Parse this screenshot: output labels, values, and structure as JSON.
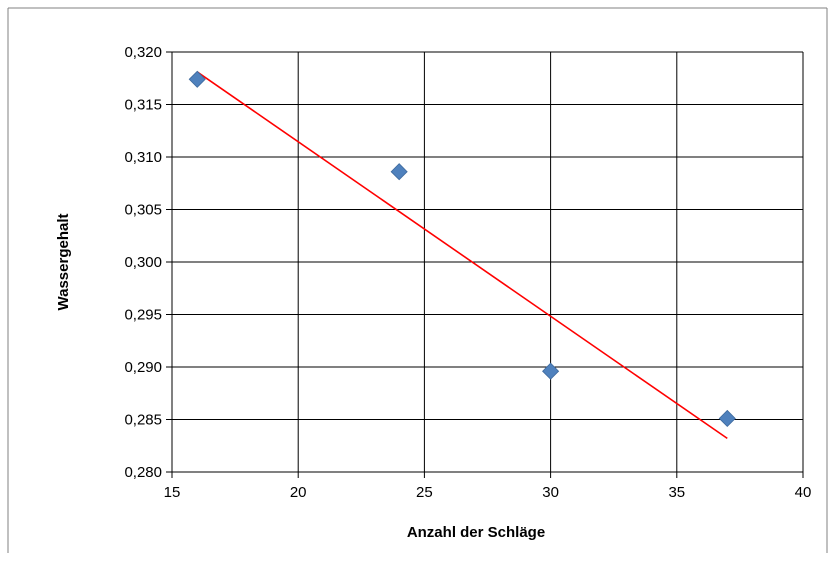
{
  "chart_data": {
    "type": "scatter",
    "title": "",
    "xlabel": "Anzahl der Schläge",
    "ylabel": "Wassergehalt",
    "xlim": [
      15,
      40
    ],
    "ylim": [
      0.28,
      0.32
    ],
    "x_ticks": [
      15,
      20,
      25,
      30,
      35,
      40
    ],
    "x_tick_labels": [
      "15",
      "20",
      "25",
      "30",
      "35",
      "40"
    ],
    "y_ticks": [
      0.28,
      0.285,
      0.29,
      0.295,
      0.3,
      0.305,
      0.31,
      0.315,
      0.32
    ],
    "y_tick_labels": [
      "0,280",
      "0,285",
      "0,290",
      "0,295",
      "0,300",
      "0,305",
      "0,310",
      "0,315",
      "0,320"
    ],
    "grid": true,
    "legend": "none",
    "series": [
      {
        "type": "scatter",
        "marker": "diamond",
        "color": "#4F81BD",
        "x": [
          16,
          24,
          30,
          37
        ],
        "y": [
          0.3174,
          0.3086,
          0.2896,
          0.2851
        ]
      }
    ],
    "trendline": {
      "type": "linear",
      "color": "#FF0000",
      "x": [
        16,
        37
      ],
      "y": [
        0.3181,
        0.2832
      ]
    }
  }
}
